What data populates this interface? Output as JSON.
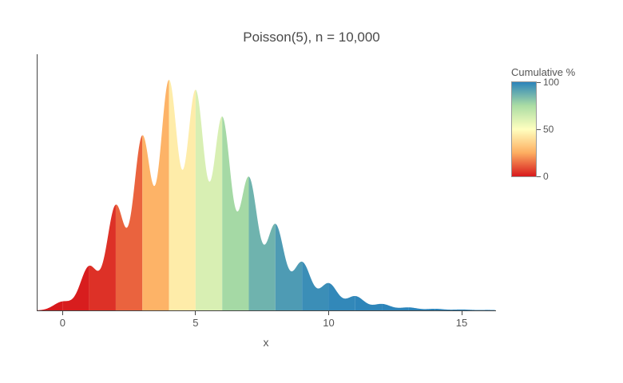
{
  "title": "Poisson(5), n = 10,000",
  "colors": {
    "axis": "#444444",
    "title_text": "#4a4a4a",
    "tick_text": "#555555",
    "background": "#ffffff"
  },
  "xaxis": {
    "label": "x",
    "range": [
      -0.97,
      16.26
    ],
    "ticks": [
      0,
      5,
      10,
      15
    ],
    "tick_labels": [
      "0",
      "5",
      "10",
      "15"
    ]
  },
  "yaxis": {
    "tick_labels_visible": false
  },
  "colorbar": {
    "title": "Cumulative %",
    "ticks": [
      {
        "value": 0,
        "label": "0"
      },
      {
        "value": 50,
        "label": "50"
      },
      {
        "value": 100,
        "label": "100"
      }
    ],
    "range": [
      0,
      100
    ],
    "colorscale": [
      {
        "pos": 0,
        "color": "#d7191c"
      },
      {
        "pos": 0.25,
        "color": "#fdae61"
      },
      {
        "pos": 0.5,
        "color": "#ffffbf"
      },
      {
        "pos": 0.75,
        "color": "#abdda4"
      },
      {
        "pos": 1,
        "color": "#2b83ba"
      }
    ]
  },
  "chart_data": {
    "type": "area",
    "subtype": "kde-density-colored-by-cumulative-percent",
    "title": "Poisson(5), n = 10,000",
    "xlabel": "x",
    "distribution_lambda": 5,
    "sample_size": 10000,
    "kde_sigma": 0.33,
    "x_range": [
      -0.97,
      16.26
    ],
    "x_ticks": [
      0,
      5,
      10,
      15
    ],
    "grid": false,
    "legend": false,
    "points": [
      {
        "k": 0,
        "rel_density": 0.038,
        "cumulative_pct": 0.7
      },
      {
        "k": 1,
        "rel_density": 0.192,
        "cumulative_pct": 4.0
      },
      {
        "k": 2,
        "rel_density": 0.457,
        "cumulative_pct": 12.5
      },
      {
        "k": 3,
        "rel_density": 0.758,
        "cumulative_pct": 26.5
      },
      {
        "k": 4,
        "rel_density": 1.0,
        "cumulative_pct": 44.0
      },
      {
        "k": 5,
        "rel_density": 0.955,
        "cumulative_pct": 61.6
      },
      {
        "k": 6,
        "rel_density": 0.84,
        "cumulative_pct": 76.2
      },
      {
        "k": 7,
        "rel_density": 0.578,
        "cumulative_pct": 86.7
      },
      {
        "k": 8,
        "rel_density": 0.374,
        "cumulative_pct": 93.2
      },
      {
        "k": 9,
        "rel_density": 0.21,
        "cumulative_pct": 96.8
      },
      {
        "k": 10,
        "rel_density": 0.118,
        "cumulative_pct": 98.6
      },
      {
        "k": 11,
        "rel_density": 0.062,
        "cumulative_pct": 99.5
      },
      {
        "k": 12,
        "rel_density": 0.028,
        "cumulative_pct": 99.8
      },
      {
        "k": 13,
        "rel_density": 0.013,
        "cumulative_pct": 99.9
      },
      {
        "k": 14,
        "rel_density": 0.007,
        "cumulative_pct": 100
      },
      {
        "k": 15,
        "rel_density": 0.004,
        "cumulative_pct": 100
      },
      {
        "k": 16,
        "rel_density": 0.002,
        "cumulative_pct": 100
      }
    ],
    "bands": [
      {
        "from": -1,
        "to": 0,
        "cumulative_pct": 0.0,
        "color": "#d7191c"
      },
      {
        "from": 0,
        "to": 1,
        "cumulative_pct": 0.7,
        "color": "#d81d1e"
      },
      {
        "from": 1,
        "to": 2,
        "cumulative_pct": 4.0,
        "color": "#dd3127"
      },
      {
        "from": 2,
        "to": 3,
        "cumulative_pct": 12.5,
        "color": "#ea633e"
      },
      {
        "from": 3,
        "to": 4,
        "cumulative_pct": 26.5,
        "color": "#fdb367"
      },
      {
        "from": 4,
        "to": 5,
        "cumulative_pct": 44.0,
        "color": "#feeca9"
      },
      {
        "from": 5,
        "to": 6,
        "cumulative_pct": 61.6,
        "color": "#d8efb3"
      },
      {
        "from": 6,
        "to": 7,
        "cumulative_pct": 76.2,
        "color": "#a5d9a5"
      },
      {
        "from": 7,
        "to": 8,
        "cumulative_pct": 86.7,
        "color": "#6fb3ae"
      },
      {
        "from": 8,
        "to": 9,
        "cumulative_pct": 93.2,
        "color": "#4e9bb4"
      },
      {
        "from": 9,
        "to": 10,
        "cumulative_pct": 96.8,
        "color": "#3b8eb7"
      },
      {
        "from": 10,
        "to": 11,
        "cumulative_pct": 98.6,
        "color": "#3288b9"
      },
      {
        "from": 11,
        "to": 12,
        "cumulative_pct": 99.5,
        "color": "#2e85b9"
      },
      {
        "from": 12,
        "to": 13,
        "cumulative_pct": 99.8,
        "color": "#2c84ba"
      },
      {
        "from": 13,
        "to": 14,
        "cumulative_pct": 99.9,
        "color": "#2b83ba"
      },
      {
        "from": 14,
        "to": 15,
        "cumulative_pct": 100,
        "color": "#2b83ba"
      },
      {
        "from": 15,
        "to": 16,
        "cumulative_pct": 100,
        "color": "#2b83ba"
      },
      {
        "from": 16,
        "to": 17,
        "cumulative_pct": 100,
        "color": "#2b83ba"
      }
    ]
  }
}
